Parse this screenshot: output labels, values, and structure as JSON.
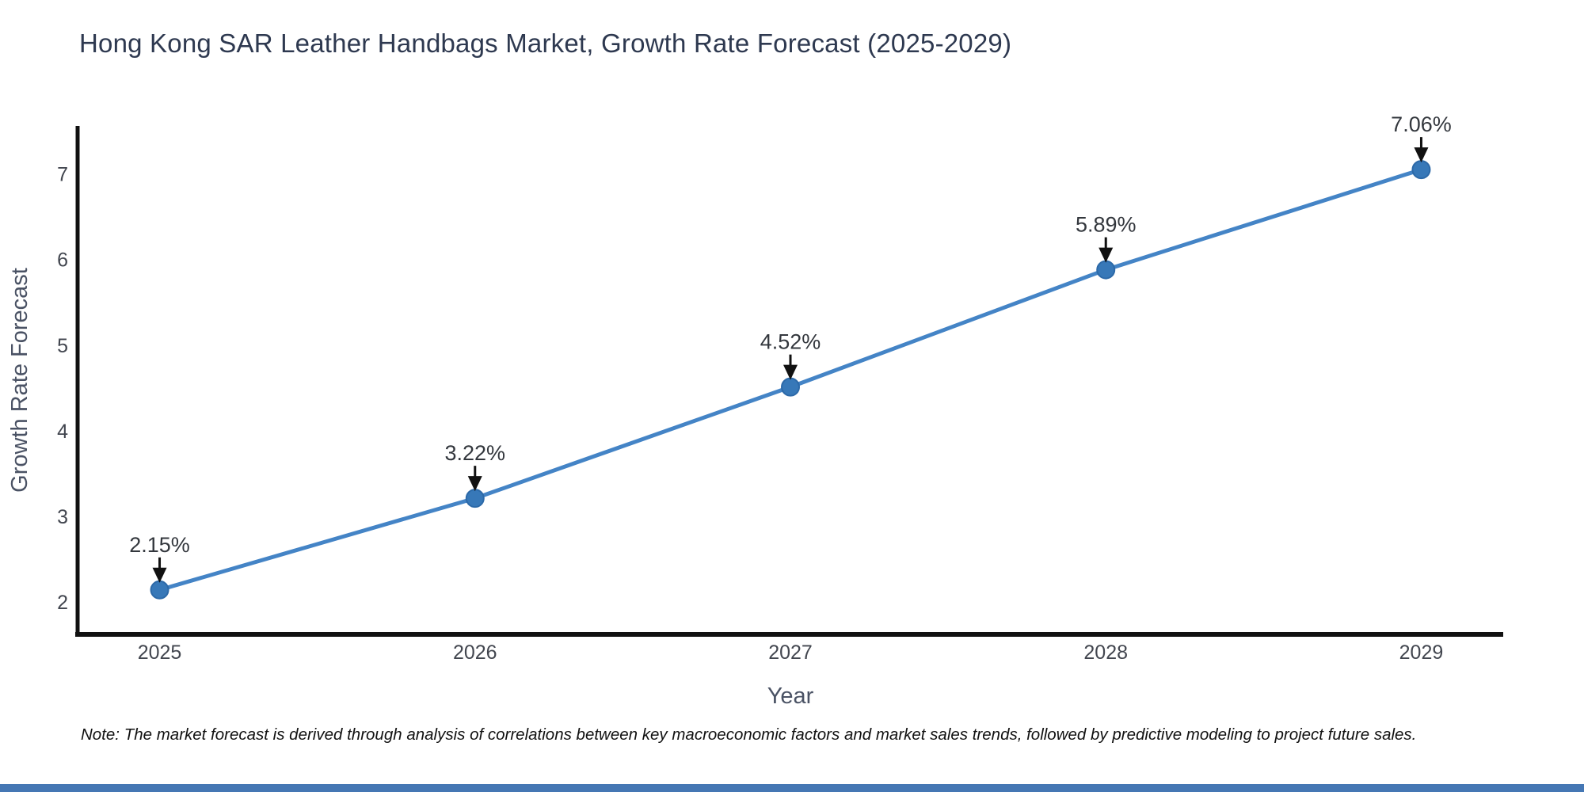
{
  "title": "Hong Kong SAR Leather Handbags Market, Growth Rate Forecast (2025-2029)",
  "note": "Note: The market forecast is derived through analysis of correlations between key macroeconomic factors and market sales trends, followed by predictive modeling to project future sales.",
  "chart_data": {
    "type": "line",
    "x": [
      2025,
      2026,
      2027,
      2028,
      2029
    ],
    "values": [
      2.15,
      3.22,
      4.52,
      5.89,
      7.06
    ],
    "point_labels": [
      "2.15%",
      "3.22%",
      "4.52%",
      "5.89%",
      "7.06%"
    ],
    "title": "Hong Kong SAR Leather Handbags Market, Growth Rate Forecast (2025-2029)",
    "xlabel": "Year",
    "ylabel": "Growth Rate Forecast",
    "x_tick_labels": [
      "2025",
      "2026",
      "2027",
      "2028",
      "2029"
    ],
    "y_ticks": [
      2,
      3,
      4,
      5,
      6,
      7
    ],
    "xlim": [
      2024.74,
      2029.26
    ],
    "ylim": [
      1.63,
      7.57
    ],
    "grid": false,
    "legend": "none",
    "annotations_style": "value label above each point with downward arrow",
    "colors": {
      "line": "#4484c6",
      "marker": "#3778b8",
      "marker_edge": "#2c69a8",
      "arrow": "#111111",
      "spine": "#111111",
      "title": "#2e3950",
      "tick_label": "#42464f",
      "axis_label": "#4a5264",
      "annotation_text": "#33373d",
      "note_text": "#111111",
      "footer_bar": "#4577b4"
    }
  }
}
